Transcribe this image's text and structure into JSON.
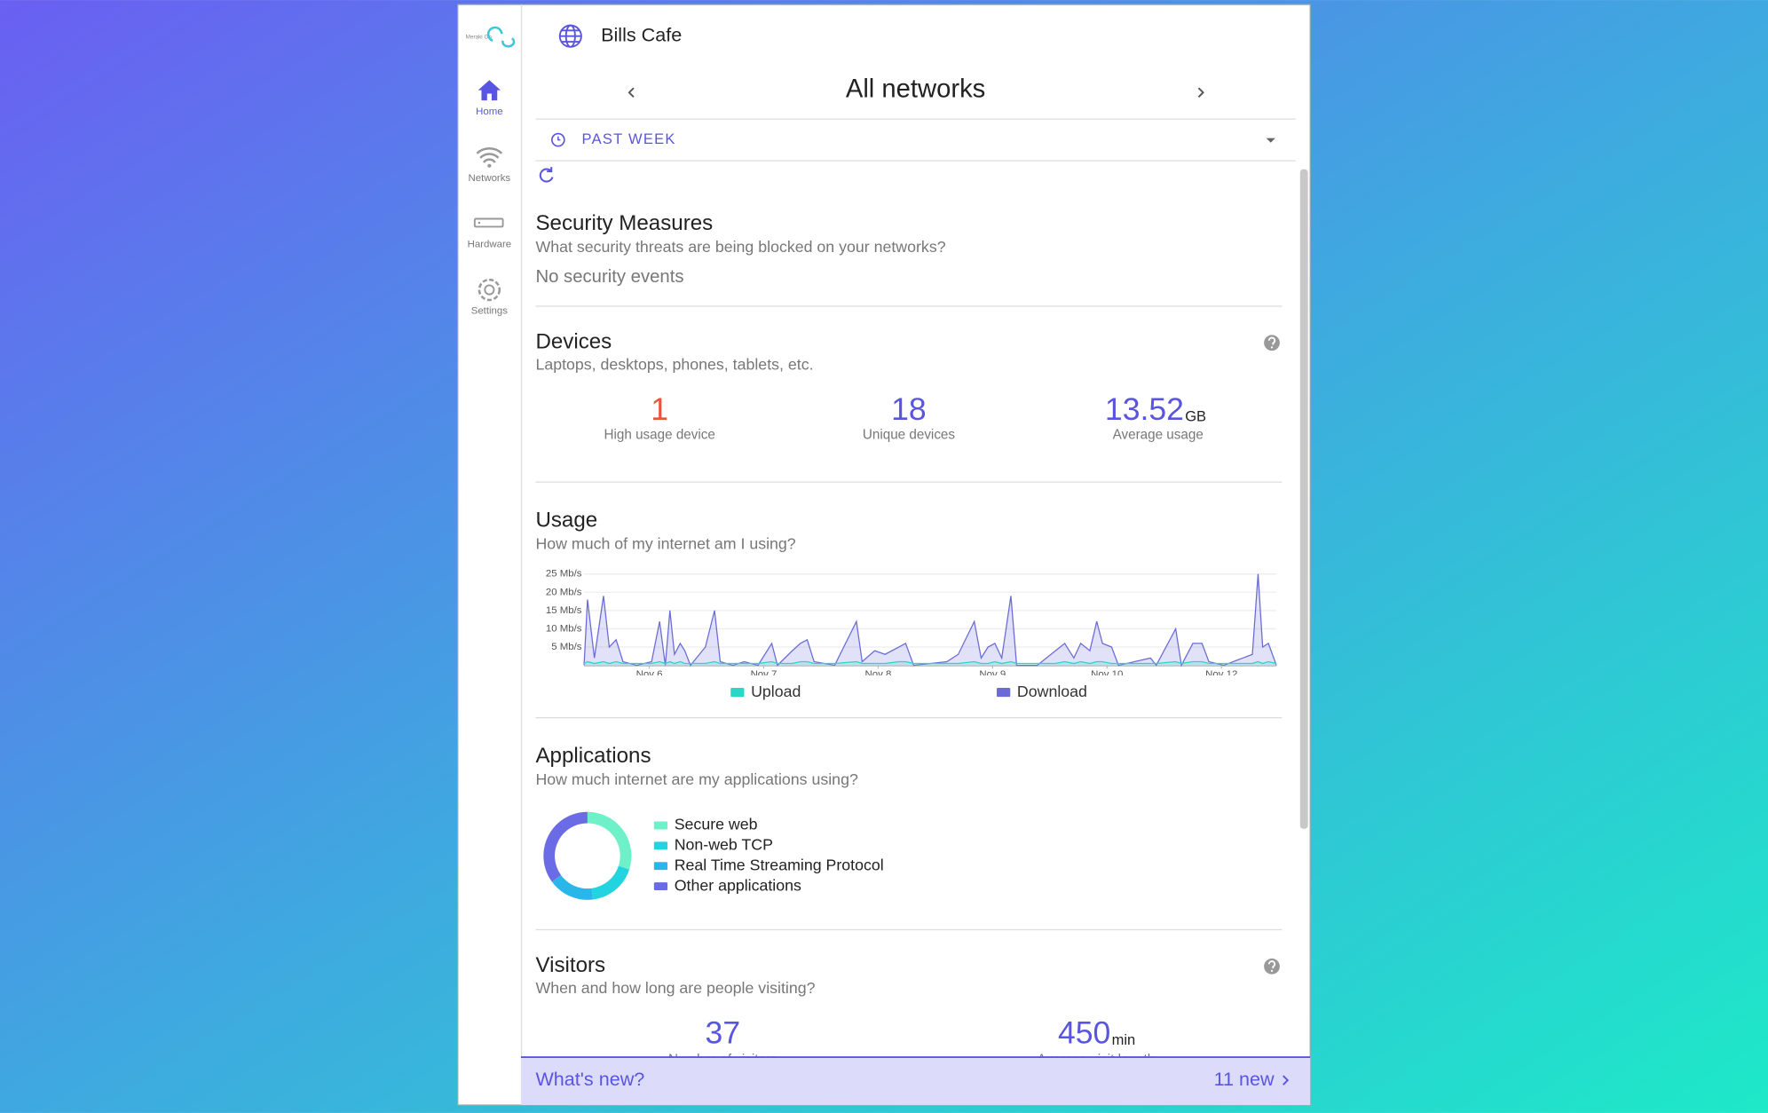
{
  "sidebar": {
    "logo": "Meraki Go",
    "nav": [
      "Home",
      "Networks",
      "Hardware",
      "Settings"
    ]
  },
  "header": {
    "title": "Bills Cafe",
    "network": "All networks",
    "period": "PAST WEEK"
  },
  "security": {
    "title": "Security Measures",
    "subtitle": "What security threats are being blocked on your networks?",
    "status": "No security events"
  },
  "devices": {
    "title": "Devices",
    "subtitle": "Laptops, desktops, phones, tablets, etc.",
    "stats": [
      {
        "value": "1",
        "label": "High usage device"
      },
      {
        "value": "18",
        "label": "Unique devices"
      },
      {
        "value": "13.52",
        "unit": "GB",
        "label": "Average usage"
      }
    ]
  },
  "usage": {
    "title": "Usage",
    "subtitle": "How much of my internet am I using?"
  },
  "applications": {
    "title": "Applications",
    "subtitle": "How much internet are my applications using?"
  },
  "visitors": {
    "title": "Visitors",
    "subtitle": "When and how long are people visiting?",
    "stats": [
      {
        "value": "37",
        "label": "Number of visitors"
      },
      {
        "value": "450",
        "unit": "min",
        "label": "Average visit length"
      }
    ]
  },
  "footer": {
    "title": "What's new?",
    "count": "11 new"
  },
  "chart_data": [
    {
      "type": "line",
      "x": [
        -0.57,
        -0.54,
        -0.48,
        -0.4,
        -0.35,
        -0.29,
        -0.23,
        -0.11,
        0.02,
        0.09,
        0.14,
        0.18,
        0.22,
        0.27,
        0.31,
        0.36,
        0.49,
        0.57,
        0.62,
        0.73,
        0.83,
        0.95,
        1.07,
        1.12,
        1.25,
        1.32,
        1.38,
        1.44,
        1.62,
        1.81,
        1.86,
        1.97,
        2.06,
        2.18,
        2.24,
        2.31,
        2.6,
        2.7,
        2.84,
        2.9,
        2.96,
        3.02,
        3.08,
        3.16,
        3.21,
        3.39,
        3.55,
        3.63,
        3.71,
        3.77,
        3.85,
        3.91,
        3.96,
        4.04,
        4.1,
        4.38,
        4.43,
        4.6,
        4.65,
        4.75,
        4.83,
        4.89,
        5.02,
        5.27,
        5.32,
        5.36,
        5.41,
        5.48
      ],
      "series": [
        {
          "name": "Upload",
          "color": "#2ad6c6",
          "values": [
            0.5,
            1,
            0.5,
            1,
            0.5,
            1,
            0.5,
            0.5,
            0.5,
            1,
            0.5,
            1,
            0.5,
            1,
            0.5,
            0.5,
            0.5,
            1,
            0.5,
            0.5,
            0.5,
            0.5,
            1,
            0.5,
            0.5,
            1,
            1,
            0.5,
            0.5,
            1,
            0.5,
            0.5,
            0.5,
            1,
            1,
            0.5,
            0.5,
            0.5,
            1,
            0.5,
            0.5,
            1,
            0.5,
            1,
            0.5,
            0.5,
            0.5,
            1,
            0.5,
            1,
            0.5,
            1,
            1,
            0.5,
            0.5,
            0.5,
            0.5,
            1,
            0.5,
            1,
            1,
            0.5,
            0.5,
            0.5,
            1,
            0.5,
            1,
            0.5
          ]
        },
        {
          "name": "Download",
          "color": "#6b6bd8",
          "values": [
            0,
            18,
            2,
            19,
            5,
            7,
            1,
            0,
            1,
            12,
            0,
            15,
            3,
            6,
            4,
            0,
            5,
            15,
            1,
            0,
            1,
            0,
            6,
            0,
            4,
            6,
            7,
            1,
            0,
            12,
            1,
            4,
            3,
            5,
            6,
            0,
            1,
            3,
            12,
            2,
            5,
            6,
            2,
            19,
            0,
            0,
            4,
            6,
            2,
            6,
            4,
            12,
            6,
            5,
            0,
            2,
            0,
            10,
            0,
            6,
            6,
            1,
            0,
            3,
            25,
            5,
            6,
            0
          ]
        }
      ],
      "xlim": [
        -0.57,
        5.48
      ],
      "xticks": [
        {
          "value": 0,
          "label": "Nov 6"
        },
        {
          "value": 1,
          "label": "Nov 7"
        },
        {
          "value": 2,
          "label": "Nov 8"
        },
        {
          "value": 3,
          "label": "Nov 9"
        },
        {
          "value": 4,
          "label": "Nov 10"
        },
        {
          "value": 5,
          "label": "Nov 12"
        }
      ],
      "ylim": [
        0,
        25
      ],
      "yticks": [
        {
          "value": 5,
          "label": "5 Mb/s"
        },
        {
          "value": 10,
          "label": "10 Mb/s"
        },
        {
          "value": 15,
          "label": "15 Mb/s"
        },
        {
          "value": 20,
          "label": "20 Mb/s"
        },
        {
          "value": 25,
          "label": "25 Mb/s"
        }
      ],
      "grid": true
    },
    {
      "type": "pie",
      "categories": [
        "Secure web",
        "Non-web TCP",
        "Real Time Streaming Protocol",
        "Other applications"
      ],
      "values": [
        30,
        18,
        17,
        35
      ],
      "colors": [
        "#6ef0c8",
        "#22d3e0",
        "#2bb6ea",
        "#6b6be6"
      ]
    }
  ]
}
